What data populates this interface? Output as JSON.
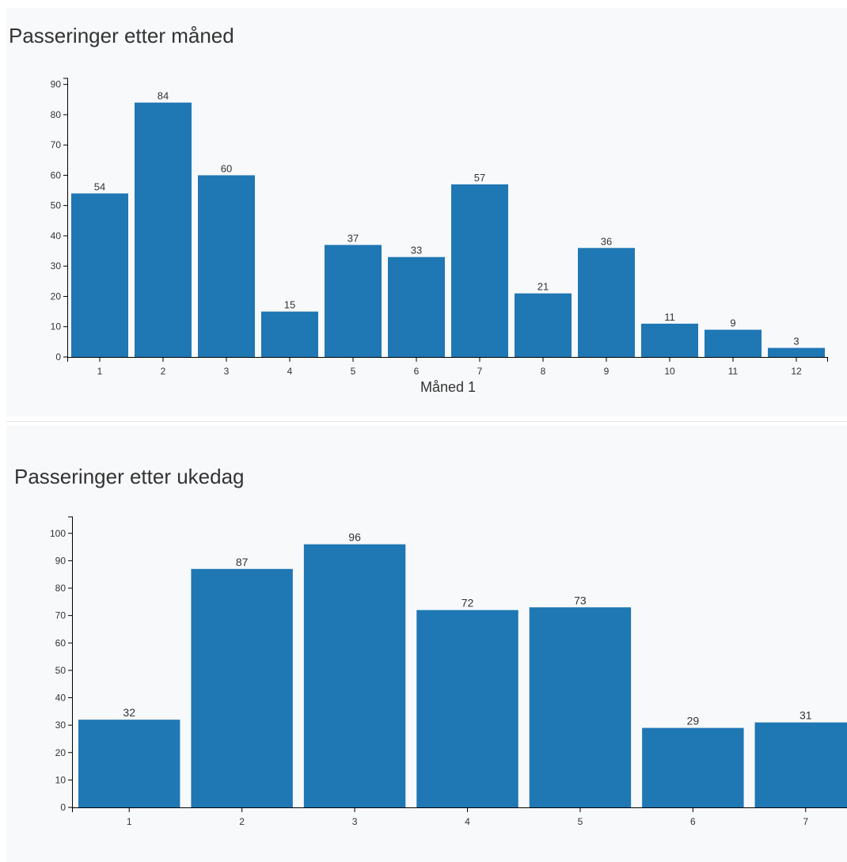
{
  "colors": {
    "bar": "#1f77b4",
    "panel_background": "#f8f9fb",
    "axis": "#000000",
    "text": "#333333"
  },
  "panels": {
    "month": {
      "title": "Passeringer etter måned"
    },
    "weekday": {
      "title": "Passeringer etter ukedag"
    }
  },
  "chart_data": [
    {
      "type": "bar",
      "title": "Passeringer etter måned",
      "xlabel": "Måned 1",
      "ylabel": "",
      "categories": [
        "1",
        "2",
        "3",
        "4",
        "5",
        "6",
        "7",
        "8",
        "9",
        "10",
        "11",
        "12"
      ],
      "values": [
        54,
        84,
        60,
        15,
        37,
        33,
        57,
        21,
        36,
        11,
        9,
        3
      ],
      "ylim": [
        0,
        92
      ],
      "yticks": [
        0,
        10,
        20,
        30,
        40,
        50,
        60,
        70,
        80,
        90
      ],
      "data_labels": true,
      "grid": false,
      "legend": "none"
    },
    {
      "type": "bar",
      "title": "Passeringer etter ukedag",
      "xlabel": "",
      "ylabel": "",
      "categories": [
        "1",
        "2",
        "3",
        "4",
        "5",
        "6",
        "7"
      ],
      "values": [
        32,
        87,
        96,
        72,
        73,
        29,
        31
      ],
      "ylim": [
        0,
        106
      ],
      "yticks": [
        0,
        10,
        20,
        30,
        40,
        50,
        60,
        70,
        80,
        90,
        100
      ],
      "data_labels": true,
      "grid": false,
      "legend": "none"
    }
  ]
}
